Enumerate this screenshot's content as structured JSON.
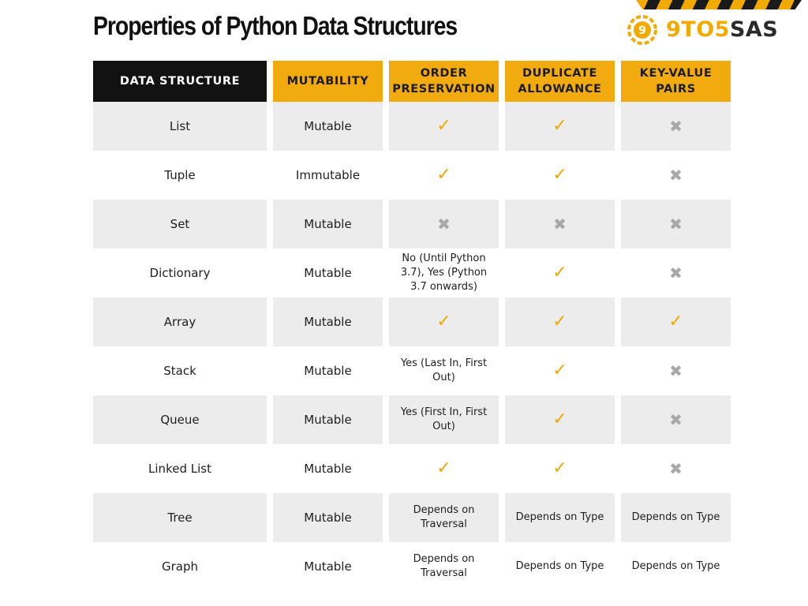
{
  "title": "Properties of Python Data Structures",
  "logo": {
    "accent": "9TO5",
    "dark": "SAS",
    "accent_color": "#f2a900",
    "dark_color": "#2b2b2b"
  },
  "columns": [
    "DATA STRUCTURE",
    "MUTABILITY",
    "ORDER PRESERVATION",
    "DUPLICATE ALLOWANCE",
    "KEY-VALUE PAIRS"
  ],
  "colors": {
    "header_dark": "#121212",
    "header_accent": "#f2ab0f",
    "row_shade": "#ececec",
    "check": "#f2a900",
    "cross": "#a8a8a8"
  },
  "icons": {
    "check": "check-icon",
    "cross": "cross-icon"
  },
  "rows": [
    {
      "name": "List",
      "mutability": "Mutable",
      "order": "check",
      "duplicate": "check",
      "keyvalue": "cross"
    },
    {
      "name": "Tuple",
      "mutability": "Immutable",
      "order": "check",
      "duplicate": "check",
      "keyvalue": "cross"
    },
    {
      "name": "Set",
      "mutability": "Mutable",
      "order": "cross",
      "duplicate": "cross",
      "keyvalue": "cross"
    },
    {
      "name": "Dictionary",
      "mutability": "Mutable",
      "order": "No (Until Python 3.7), Yes (Python 3.7 onwards)",
      "duplicate": "check",
      "keyvalue": "cross"
    },
    {
      "name": "Array",
      "mutability": "Mutable",
      "order": "check",
      "duplicate": "check",
      "keyvalue": "check"
    },
    {
      "name": "Stack",
      "mutability": "Mutable",
      "order": "Yes (Last In, First Out)",
      "duplicate": "check",
      "keyvalue": "cross"
    },
    {
      "name": "Queue",
      "mutability": "Mutable",
      "order": "Yes (First In, First Out)",
      "duplicate": "check",
      "keyvalue": "cross"
    },
    {
      "name": "Linked List",
      "mutability": "Mutable",
      "order": "check",
      "duplicate": "check",
      "keyvalue": "cross"
    },
    {
      "name": "Tree",
      "mutability": "Mutable",
      "order": "Depends on Traversal",
      "duplicate": "Depends on Type",
      "keyvalue": "Depends on Type"
    },
    {
      "name": "Graph",
      "mutability": "Mutable",
      "order": "Depends on Traversal",
      "duplicate": "Depends on Type",
      "keyvalue": "Depends on Type"
    }
  ]
}
